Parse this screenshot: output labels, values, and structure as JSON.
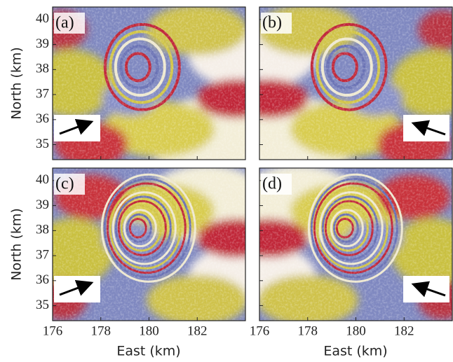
{
  "figure": {
    "panels": [
      {
        "label": "(a)"
      },
      {
        "label": "(b)"
      },
      {
        "label": "(c)"
      },
      {
        "label": "(d)"
      }
    ],
    "xlabel": "East (km)",
    "ylabel": "North (km)",
    "xlim": [
      176,
      184
    ],
    "xticks": [
      176,
      178,
      180,
      182
    ],
    "ylim": [
      34.4,
      40.5
    ],
    "yticks": [
      35,
      36,
      37,
      38,
      39,
      40
    ]
  }
}
